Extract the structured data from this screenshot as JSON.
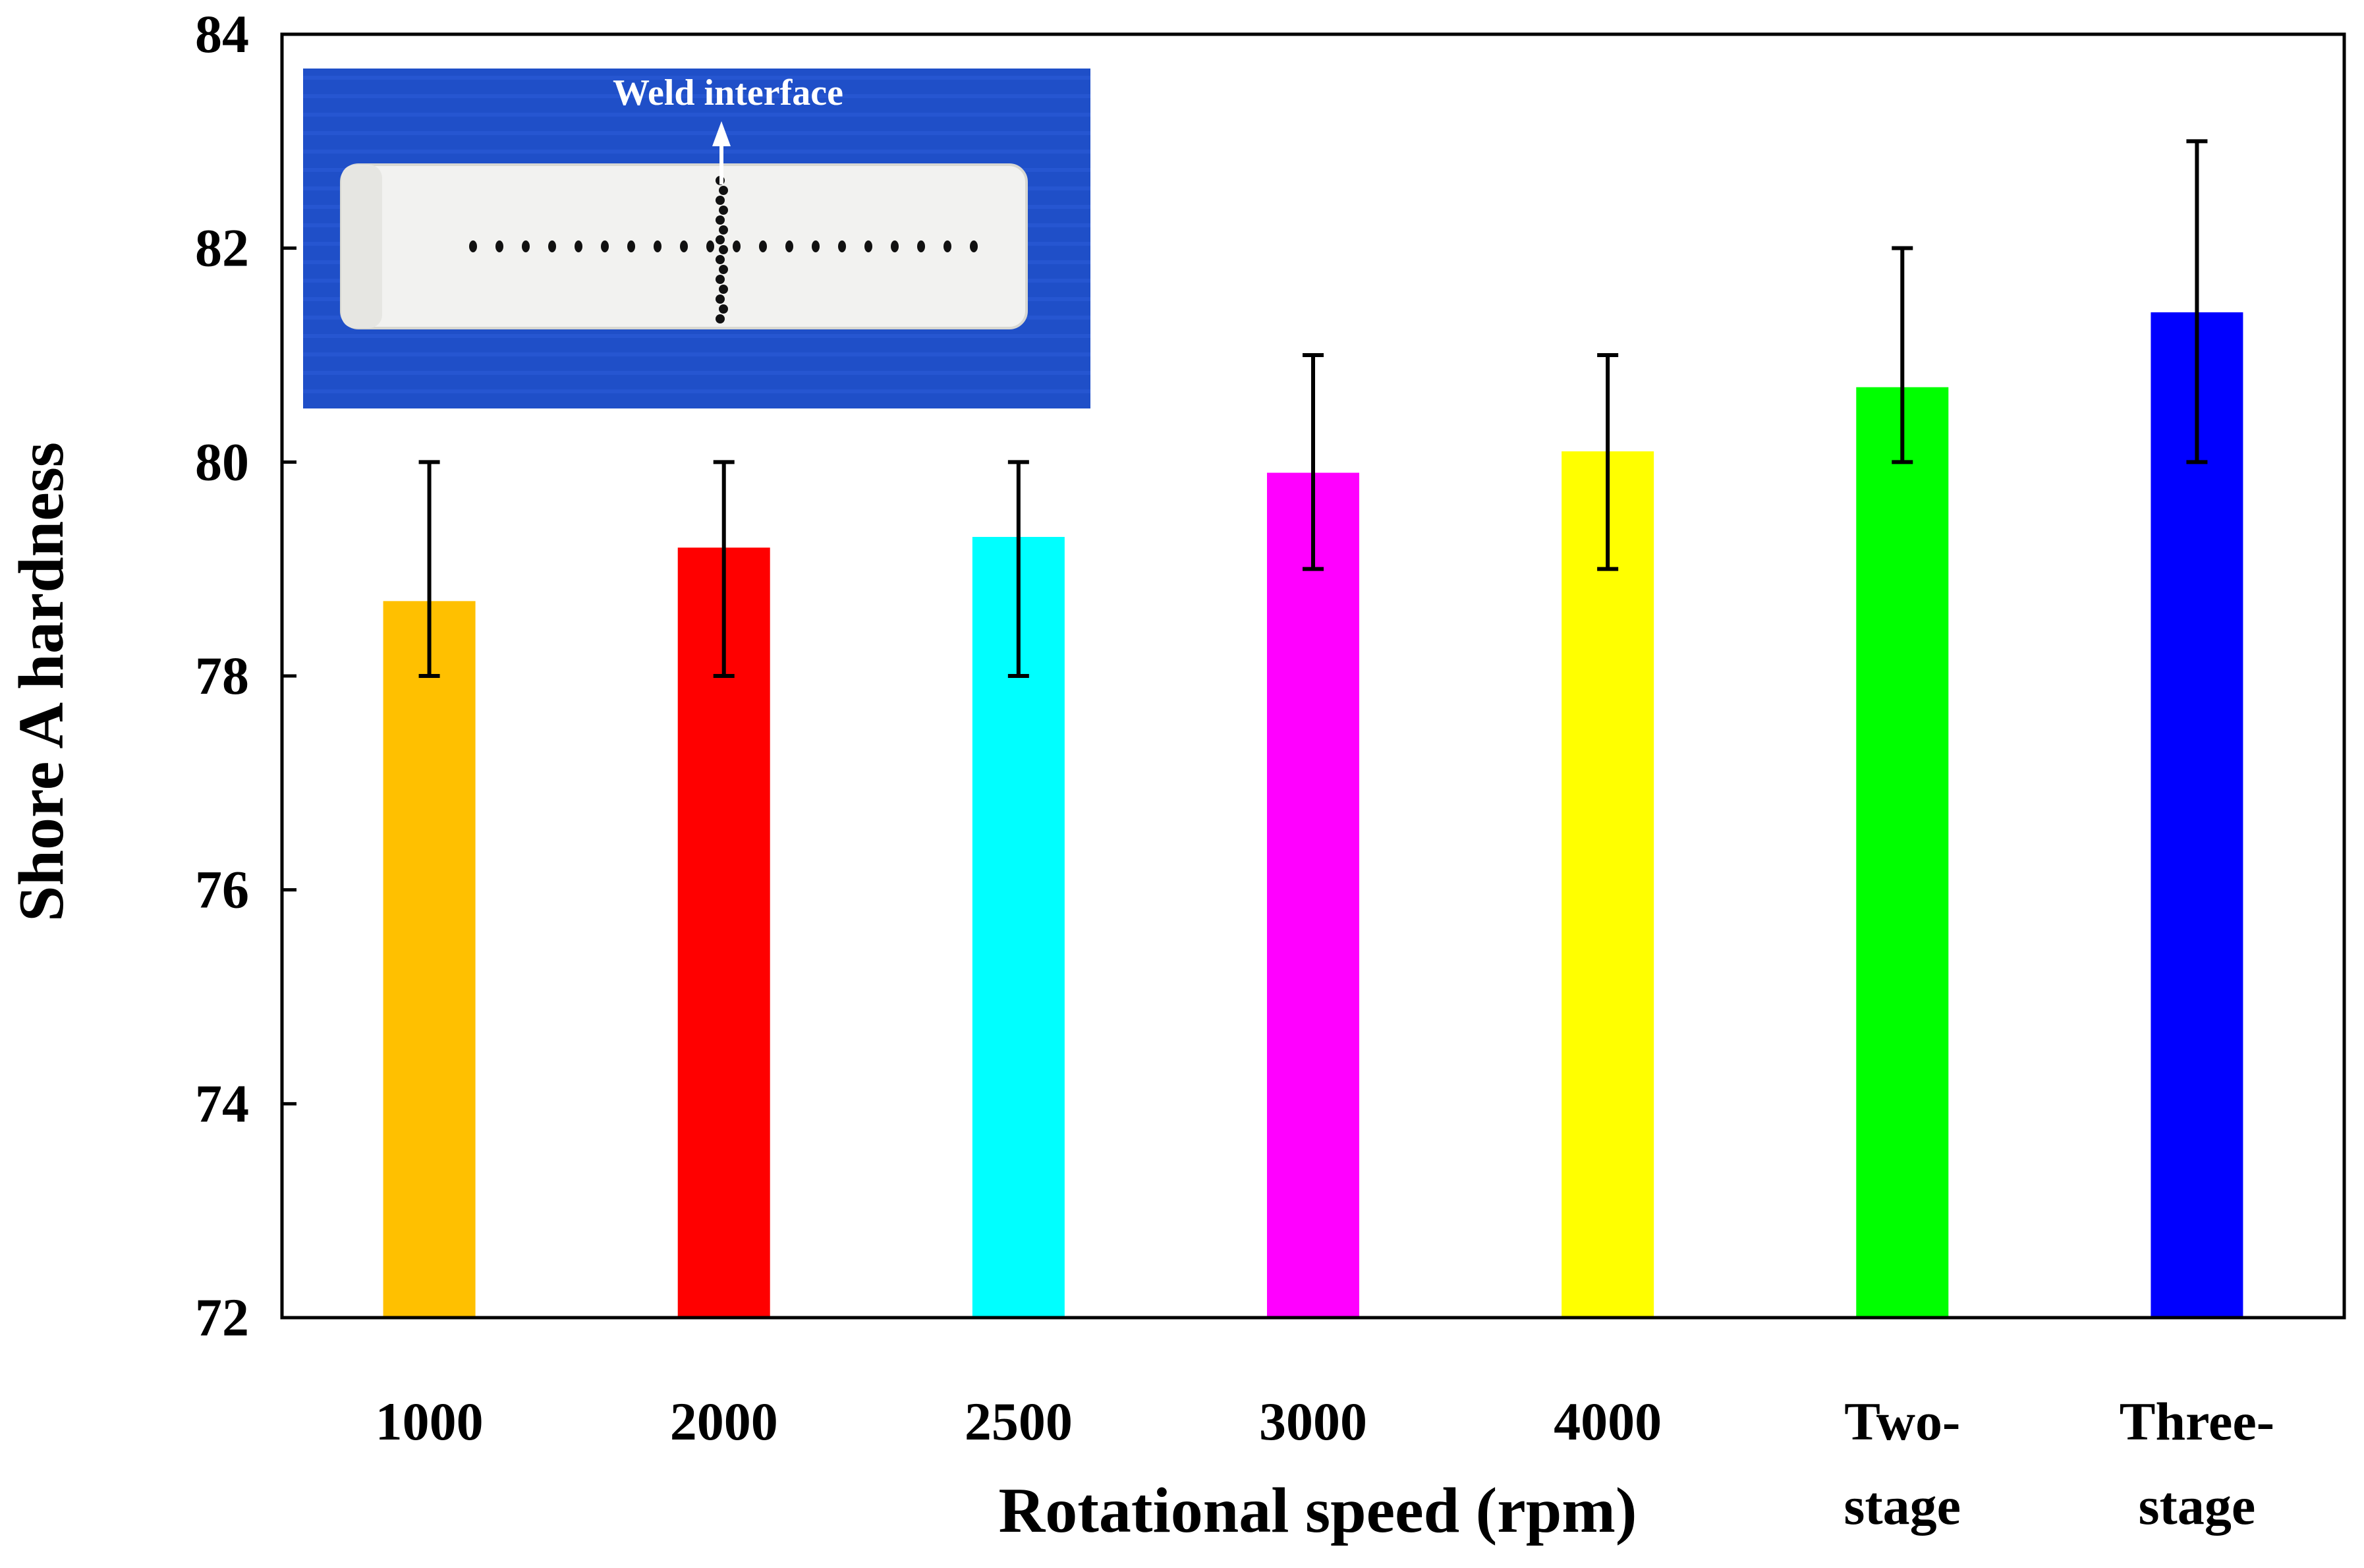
{
  "chart_data": {
    "type": "bar",
    "title": "",
    "xlabel": "Rotational speed (rpm)",
    "ylabel": "Shore A hardness",
    "ylim": [
      72,
      84
    ],
    "yticks": [
      72,
      74,
      76,
      78,
      80,
      82,
      84
    ],
    "ytick_labels": [
      "72",
      "74",
      "76",
      "78",
      "80",
      "82",
      "84"
    ],
    "grid": false,
    "legend": "none",
    "categories": [
      "1000",
      "2000",
      "2500",
      "3000",
      "4000",
      "Two-stage",
      "Three-stage"
    ],
    "category_lines": [
      [
        "1000"
      ],
      [
        "2000"
      ],
      [
        "2500"
      ],
      [
        "3000"
      ],
      [
        "4000"
      ],
      [
        "Two-",
        "stage"
      ],
      [
        "Three-",
        "stage"
      ]
    ],
    "values": [
      78.7,
      79.2,
      79.3,
      79.9,
      80.1,
      80.7,
      81.4
    ],
    "error_low": [
      78.0,
      78.0,
      78.0,
      79.0,
      79.0,
      80.0,
      80.0
    ],
    "error_high": [
      80.0,
      80.0,
      80.0,
      81.0,
      81.0,
      82.0,
      83.0
    ],
    "bar_colors": [
      "#FFC000",
      "#FF0000",
      "#00FFFF",
      "#FF00FF",
      "#FFFF00",
      "#00FF00",
      "#0000FF"
    ],
    "inset": {
      "annotation": "Weld interface",
      "background": "#1f4fc8",
      "specimen_color": "#f2f2f0",
      "marker_color": "#111111"
    }
  }
}
